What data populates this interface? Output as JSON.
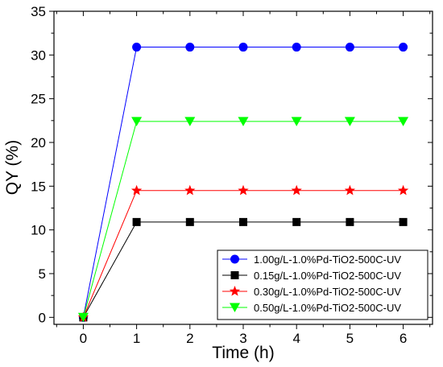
{
  "chart_data": {
    "type": "line",
    "xlabel": "Time (h)",
    "ylabel": "QY (%)",
    "xlim": [
      -0.55,
      6.55
    ],
    "ylim": [
      -0.8,
      35
    ],
    "x_ticks": [
      0,
      1,
      2,
      3,
      4,
      5,
      6
    ],
    "y_ticks": [
      0,
      5,
      10,
      15,
      20,
      25,
      30,
      35
    ],
    "grid": false,
    "legend_position": "bottom-right",
    "x": [
      0,
      1,
      2,
      3,
      4,
      5,
      6
    ],
    "series": [
      {
        "name": "1.00g/L-1.0%Pd-TiO2-500C-UV",
        "color": "#0000ff",
        "marker": "circle",
        "values": [
          0,
          30.9,
          30.9,
          30.9,
          30.9,
          30.9,
          30.9
        ]
      },
      {
        "name": "0.15g/L-1.0%Pd-TiO2-500C-UV",
        "color": "#000000",
        "marker": "square",
        "values": [
          0,
          10.9,
          10.9,
          10.9,
          10.9,
          10.9,
          10.9
        ]
      },
      {
        "name": "0.30g/L-1.0%Pd-TiO2-500C-UV",
        "color": "#ff0000",
        "marker": "star",
        "values": [
          0,
          14.5,
          14.5,
          14.5,
          14.5,
          14.5,
          14.5
        ]
      },
      {
        "name": "0.50g/L-1.0%Pd-TiO2-500C-UV",
        "color": "#00ff00",
        "marker": "triangle-down",
        "values": [
          0,
          22.4,
          22.4,
          22.4,
          22.4,
          22.4,
          22.4
        ]
      }
    ]
  }
}
